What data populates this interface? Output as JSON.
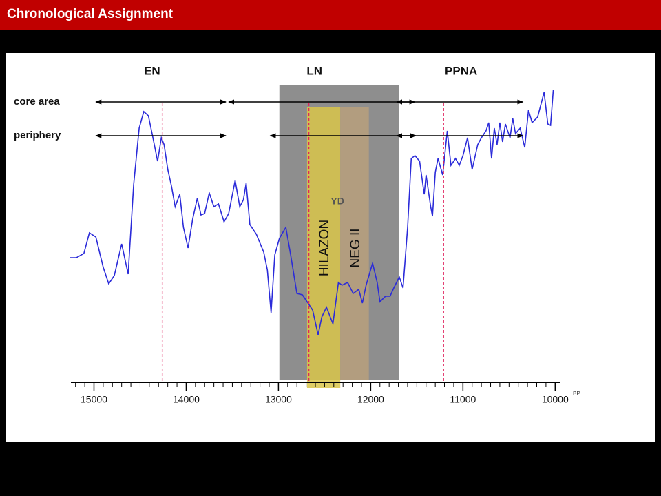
{
  "slide": {
    "title": "Chronological Assignment"
  },
  "chart_data": {
    "type": "line",
    "x": [
      15260,
      15190,
      15110,
      15050,
      14980,
      14900,
      14840,
      14780,
      14700,
      14630,
      14570,
      14510,
      14460,
      14410,
      14370,
      14310,
      14270,
      14240,
      14200,
      14160,
      14120,
      14070,
      14030,
      13980,
      13930,
      13880,
      13840,
      13800,
      13750,
      13700,
      13650,
      13590,
      13540,
      13470,
      13420,
      13380,
      13350,
      13310,
      13240,
      13160,
      13120,
      13080,
      13040,
      12990,
      12920,
      12870,
      12800,
      12740,
      12680,
      12630,
      12570,
      12530,
      12480,
      12410,
      12350,
      12310,
      12250,
      12190,
      12130,
      12090,
      12050,
      11980,
      11930,
      11900,
      11840,
      11790,
      11750,
      11690,
      11650,
      11600,
      11560,
      11520,
      11470,
      11420,
      11400,
      11350,
      11330,
      11300,
      11270,
      11220,
      11170,
      11130,
      11080,
      11040,
      11000,
      10950,
      10900,
      10840,
      10800,
      10750,
      10720,
      10690,
      10660,
      10630,
      10600,
      10570,
      10540,
      10490,
      10460,
      10430,
      10380,
      10330,
      10290,
      10250,
      10190,
      10120,
      10080,
      10050,
      10020
    ],
    "values": [
      44,
      44,
      45.5,
      53,
      51.5,
      40.5,
      34.5,
      37.5,
      49,
      38,
      70.5,
      91,
      97,
      95.5,
      89,
      79,
      87.5,
      85,
      76,
      70,
      62.5,
      67,
      55,
      47.5,
      58,
      65.5,
      59.5,
      60,
      67.5,
      62.5,
      63.5,
      57,
      60,
      72,
      62.5,
      65,
      71,
      56,
      52.5,
      46,
      39.5,
      24,
      45,
      51,
      55,
      45.5,
      31,
      30.5,
      27.5,
      25,
      16,
      22.5,
      26,
      20,
      35,
      34,
      35,
      31,
      32.5,
      27.5,
      34,
      42,
      35,
      28,
      30,
      30,
      33,
      37,
      33,
      55,
      80,
      81,
      79,
      67,
      74,
      62.5,
      59,
      75,
      80,
      74,
      90,
      77.5,
      80,
      77.5,
      81,
      87.5,
      76,
      85,
      87.5,
      90,
      93,
      80,
      91,
      85,
      93,
      86,
      92.5,
      87.5,
      94.5,
      89,
      91,
      84,
      97.5,
      93,
      95,
      104,
      92.5,
      92,
      105
    ],
    "color": "#2b2bd9",
    "xlim": [
      15250,
      9950
    ],
    "xticks": [
      15000,
      14000,
      13000,
      12000,
      11000,
      10000
    ],
    "xminor_step": 100,
    "x_unit": "BP",
    "ylim": [
      0,
      110
    ],
    "grid": false,
    "bands": [
      {
        "color": "#8e8e8e",
        "range": [
          12990,
          11690
        ]
      },
      {
        "label": "HILAZON",
        "color": "#d9c64a",
        "range": [
          12690,
          12330
        ]
      },
      {
        "label": "NEG II",
        "color": "#b8a07c",
        "range": [
          12330,
          12020
        ]
      }
    ],
    "band_label": {
      "text": "YD",
      "x": 12360
    },
    "periods": [
      {
        "label": "EN",
        "x": 14370,
        "marker": 14260
      },
      {
        "label": "LN",
        "x": 12610,
        "marker": 12670
      },
      {
        "label": "PPNA",
        "x": 11020,
        "marker": 11210
      }
    ],
    "rows": [
      {
        "label": "core area",
        "ranges": [
          [
            14980,
            13570
          ],
          [
            13540,
            11520
          ],
          [
            11720,
            10350
          ]
        ]
      },
      {
        "label": "periphery",
        "ranges": [
          [
            14980,
            13570
          ],
          [
            13090,
            11510
          ],
          [
            11720,
            10350
          ]
        ]
      }
    ]
  }
}
